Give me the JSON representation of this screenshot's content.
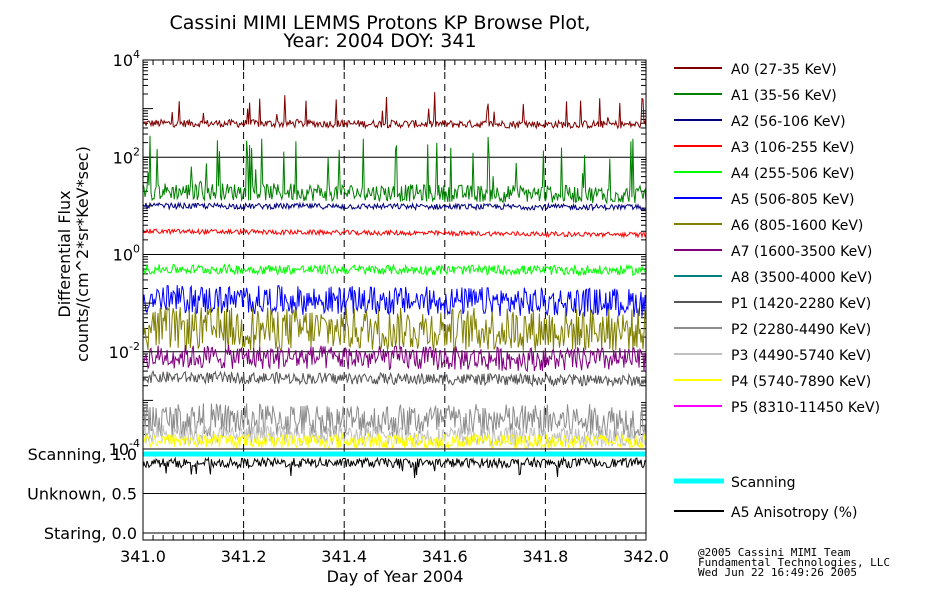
{
  "chart_data": {
    "type": "line",
    "title": "Cassini MIMI LEMMS Protons KP Browse Plot,",
    "subtitle": "Year: 2004 DOY: 341",
    "xlabel": "Day of Year 2004",
    "ylabel_line1": "Differential Flux",
    "ylabel_line2": "counts/(cm^2*sr*KeV*sec)",
    "xlim": [
      341.0,
      342.0
    ],
    "x_ticks": [
      "341.0",
      "341.2",
      "341.4",
      "341.6",
      "341.8",
      "342.0"
    ],
    "x_tick_values": [
      341.0,
      341.2,
      341.4,
      341.6,
      341.8,
      342.0
    ],
    "y_scale": "log",
    "ylim": [
      0.0001,
      10000
    ],
    "y_ticks": [
      {
        "base": "10",
        "exp": "4"
      },
      {
        "base": "10",
        "exp": "2"
      },
      {
        "base": "10",
        "exp": "0"
      },
      {
        "base": "10",
        "exp": "-2"
      },
      {
        "base": "10",
        "exp": "-4"
      }
    ],
    "y_tick_values": [
      10000,
      100,
      1,
      0.01,
      0.0001
    ],
    "series": [
      {
        "name": "A0 (27-35 KeV)",
        "color": "#800000",
        "level": 500,
        "spread": 0.08,
        "spikes": 0.05,
        "spike_size": 3
      },
      {
        "name": "A1 (35-56 KeV)",
        "color": "#008000",
        "level": 20,
        "spread": 0.18,
        "spikes": 0.1,
        "spike_size": 10
      },
      {
        "name": "A2 (56-106 KeV)",
        "color": "#000080",
        "level": 10,
        "spread": 0.06,
        "spikes": 0.0,
        "spike_size": 1
      },
      {
        "name": "A3 (106-255 KeV)",
        "color": "#ff0000",
        "level": 3,
        "spread": 0.05,
        "spikes": 0.0,
        "spike_size": 1
      },
      {
        "name": "A4 (255-506 KeV)",
        "color": "#00ff00",
        "level": 0.5,
        "spread": 0.1,
        "spikes": 0.0,
        "spike_size": 1
      },
      {
        "name": "A5 (506-805 KeV)",
        "color": "#0000ff",
        "level": 0.12,
        "spread": 0.3,
        "spikes": 0.0,
        "spike_size": 1
      },
      {
        "name": "A6 (805-1600 KeV)",
        "color": "#808000",
        "level": 0.03,
        "spread": 0.45,
        "spikes": 0.0,
        "spike_size": 1
      },
      {
        "name": "A7 (1600-3500 KeV)",
        "color": "#800080",
        "level": 0.008,
        "spread": 0.25,
        "spikes": 0.0,
        "spike_size": 1
      },
      {
        "name": "A8 (3500-4000 KeV)",
        "color": "#008080",
        "level": 0,
        "spread": 0,
        "spikes": 0,
        "spike_size": 1
      },
      {
        "name": "P1 (1420-2280 KeV)",
        "color": "#555555",
        "level": 0.003,
        "spread": 0.12,
        "spikes": 0.0,
        "spike_size": 1
      },
      {
        "name": "P2 (2280-4490 KeV)",
        "color": "#8c8c8c",
        "level": 0.0004,
        "spread": 0.35,
        "spikes": 0.0,
        "spike_size": 1
      },
      {
        "name": "P3 (4490-5740 KeV)",
        "color": "#c0c0c0",
        "level": 0.0002,
        "spread": 0.2,
        "spikes": 0.0,
        "spike_size": 1
      },
      {
        "name": "P4 (5740-7890 KeV)",
        "color": "#ffff00",
        "level": 0.00015,
        "spread": 0.15,
        "spikes": 0.0,
        "spike_size": 1
      },
      {
        "name": "P5 (8310-11450 KeV)",
        "color": "#ff00ff",
        "level": 0,
        "spread": 0,
        "spikes": 0,
        "spike_size": 1
      }
    ],
    "lower_panel": {
      "y_labels": [
        "Scanning, 1.0",
        "Unknown, 0.5",
        "Staring, 0.0"
      ],
      "y_values": [
        1.0,
        0.5,
        0.0
      ],
      "ylim": [
        0.0,
        1.0
      ],
      "series": [
        {
          "name": "Scanning",
          "color": "#00ffff",
          "level": 1.0
        },
        {
          "name": "A5 Anisotropy (%)",
          "color": "#000000",
          "level": 0.9
        }
      ]
    }
  },
  "credits": {
    "line1": "@2005 Cassini MIMI Team",
    "line2": "Fundamental Technologies, LLC",
    "line3": "Wed Jun 22 16:49:26 2005"
  }
}
